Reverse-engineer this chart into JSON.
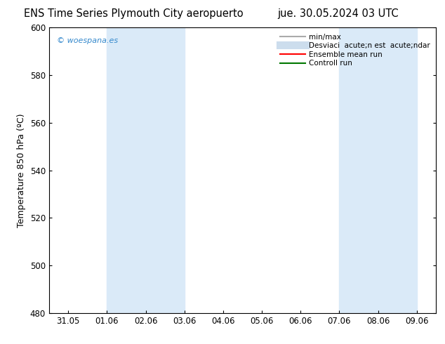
{
  "title_left": "ENS Time Series Plymouth City aeropuerto",
  "title_right": "jue. 30.05.2024 03 UTC",
  "ylabel": "Temperature 850 hPa (ºC)",
  "ylim": [
    480,
    600
  ],
  "yticks": [
    480,
    500,
    520,
    540,
    560,
    580,
    600
  ],
  "xtick_labels": [
    "31.05",
    "01.06",
    "02.06",
    "03.06",
    "04.06",
    "05.06",
    "06.06",
    "07.06",
    "08.06",
    "09.06"
  ],
  "bg_color": "#ffffff",
  "plot_bg_color": "#ffffff",
  "shaded_bands": [
    {
      "xstart": 1,
      "xend": 3,
      "color": "#daeaf8"
    },
    {
      "xstart": 7,
      "xend": 9,
      "color": "#daeaf8"
    }
  ],
  "watermark_text": "© woespana.es",
  "watermark_color": "#3388cc",
  "legend_items": [
    {
      "label": "min/max",
      "color": "#aaaaaa",
      "lw": 1.5,
      "style": "-"
    },
    {
      "label": "Desviaci  acute;n est  acute;ndar",
      "color": "#ccdded",
      "lw": 8,
      "style": "-"
    },
    {
      "label": "Ensemble mean run",
      "color": "#ff0000",
      "lw": 1.5,
      "style": "-"
    },
    {
      "label": "Controll run",
      "color": "#007700",
      "lw": 1.5,
      "style": "-"
    }
  ],
  "title_fontsize": 10.5,
  "axis_fontsize": 9,
  "tick_fontsize": 8.5,
  "legend_fontsize": 7.5
}
